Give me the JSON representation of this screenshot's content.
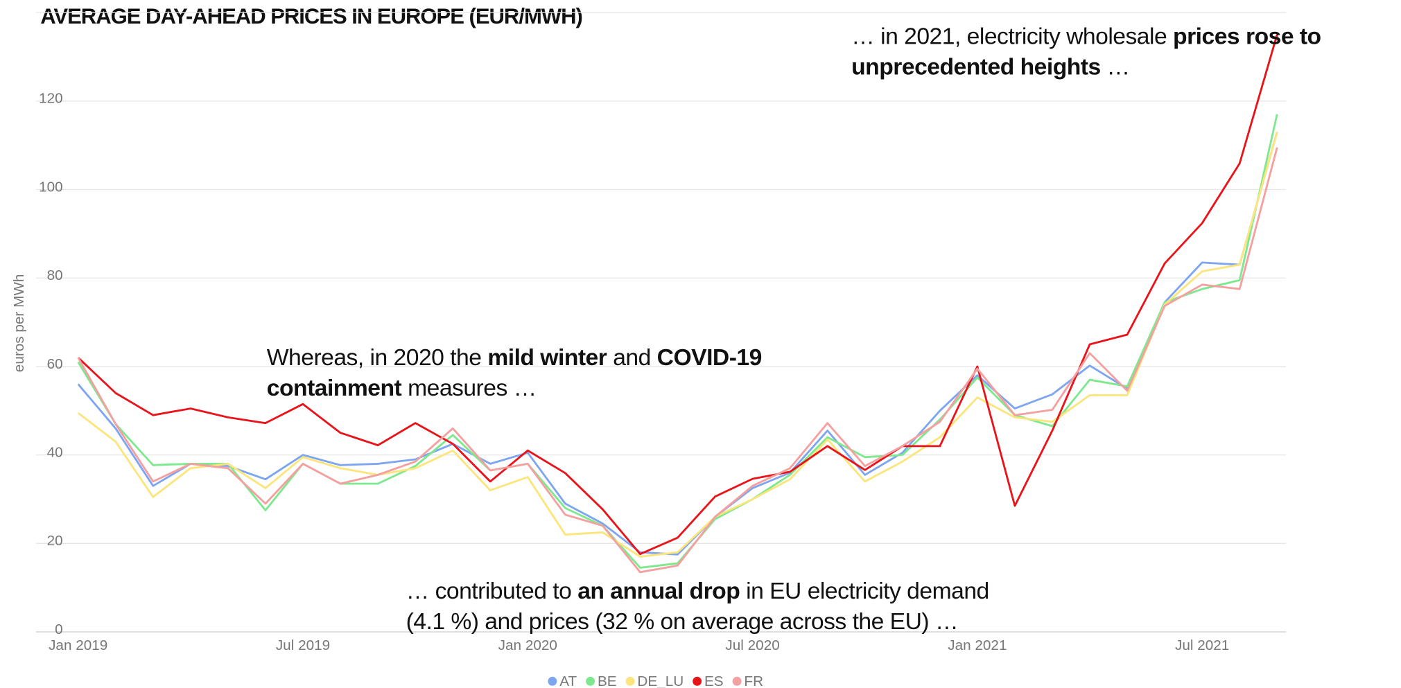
{
  "chart_data": {
    "type": "line",
    "title": "AVERAGE DAY-AHEAD PRICES IN EUROPE (EUR/MWH)",
    "y_label": "euros per MWh",
    "x": [
      "2019-01",
      "2019-02",
      "2019-03",
      "2019-04",
      "2019-05",
      "2019-06",
      "2019-07",
      "2019-08",
      "2019-09",
      "2019-10",
      "2019-11",
      "2019-12",
      "2020-01",
      "2020-02",
      "2020-03",
      "2020-04",
      "2020-05",
      "2020-06",
      "2020-07",
      "2020-08",
      "2020-09",
      "2020-10",
      "2020-11",
      "2020-12",
      "2021-01",
      "2021-02",
      "2021-03",
      "2021-04",
      "2021-05",
      "2021-06",
      "2021-07",
      "2021-08",
      "2021-09"
    ],
    "xticks": [
      {
        "value": "2019-01",
        "label": "Jan 2019"
      },
      {
        "value": "2019-07",
        "label": "Jul 2019"
      },
      {
        "value": "2020-01",
        "label": "Jan 2020"
      },
      {
        "value": "2020-07",
        "label": "Jul 2020"
      },
      {
        "value": "2021-01",
        "label": "Jan 2021"
      },
      {
        "value": "2021-07",
        "label": "Jul 2021"
      }
    ],
    "ylim": [
      0,
      140
    ],
    "yticks": [
      0,
      20,
      40,
      60,
      80,
      100,
      120
    ],
    "grid": true,
    "legend": "bottom",
    "series": [
      {
        "name": "AT",
        "color": "#7ea6f0",
        "values": [
          56,
          46,
          33,
          38,
          37.5,
          34.5,
          40,
          37.7,
          38,
          39,
          42.5,
          38,
          40.5,
          29,
          24.5,
          18,
          17.5,
          26,
          32.5,
          36,
          45.5,
          35.5,
          40.5,
          50,
          58,
          50.5,
          53.7,
          60.2,
          55,
          74.5,
          83.5,
          83,
          113
        ]
      },
      {
        "name": "BE",
        "color": "#7ee88e",
        "values": [
          61,
          47,
          37.7,
          38,
          38,
          27.5,
          38,
          33.5,
          33.5,
          37.5,
          44.5,
          36.5,
          38,
          28,
          24,
          14.5,
          15.5,
          25.5,
          30,
          35.5,
          44,
          39.5,
          40,
          48,
          57.5,
          49,
          46.5,
          57,
          55.5,
          74.5,
          77.5,
          79.5,
          117
        ]
      },
      {
        "name": "DE_LU",
        "color": "#fbe57c",
        "values": [
          49.5,
          43,
          30.5,
          37,
          38,
          32.5,
          39.5,
          37,
          35.5,
          37,
          41,
          32,
          35,
          22,
          22.5,
          17,
          18,
          26,
          30,
          34.5,
          43.5,
          34,
          38.5,
          44,
          53,
          48.5,
          47.5,
          53.5,
          53.5,
          74,
          81.5,
          83,
          113
        ]
      },
      {
        "name": "ES",
        "color": "#e8141a",
        "values": [
          62,
          54,
          49,
          50.5,
          48.5,
          47.2,
          51.5,
          45,
          42.2,
          47.2,
          42.5,
          34,
          41,
          35.9,
          27.7,
          17.6,
          21.3,
          30.6,
          34.6,
          36.2,
          42,
          36.6,
          42,
          42,
          60,
          28.5,
          45.5,
          65,
          67.2,
          83.3,
          92.4,
          105.9,
          135
        ]
      },
      {
        "name": "FR",
        "color": "#f4a0a0",
        "values": [
          62,
          47,
          34,
          38,
          37,
          29,
          38,
          33.5,
          35.5,
          38.5,
          46,
          36.5,
          38,
          26.5,
          24,
          13.5,
          15,
          26,
          33,
          37,
          47.2,
          37.5,
          42,
          47.5,
          59.5,
          49,
          50.2,
          63,
          54.5,
          73.7,
          78.5,
          77.5,
          109.5
        ]
      }
    ],
    "annotations": [
      {
        "lines": [
          [
            {
              "text": "… in 2021, electricity wholesale "
            },
            {
              "text": "prices rose to",
              "bold": true
            }
          ],
          [
            {
              "text": "unprecedented heights",
              "bold": true
            },
            {
              "text": " …"
            }
          ]
        ]
      },
      {
        "lines": [
          [
            {
              "text": "Whereas, in 2020 the "
            },
            {
              "text": "mild winter",
              "bold": true
            },
            {
              "text": " and "
            },
            {
              "text": "COVID-19",
              "bold": true
            }
          ],
          [
            {
              "text": "containment",
              "bold": true
            },
            {
              "text": " measures …"
            }
          ]
        ]
      },
      {
        "lines": [
          [
            {
              "text": "… contributed to "
            },
            {
              "text": "an annual drop",
              "bold": true
            },
            {
              "text": " in EU electricity demand"
            }
          ],
          [
            {
              "text": "(4.1 %) and prices (32 % on average across the EU) …"
            }
          ]
        ]
      }
    ]
  }
}
